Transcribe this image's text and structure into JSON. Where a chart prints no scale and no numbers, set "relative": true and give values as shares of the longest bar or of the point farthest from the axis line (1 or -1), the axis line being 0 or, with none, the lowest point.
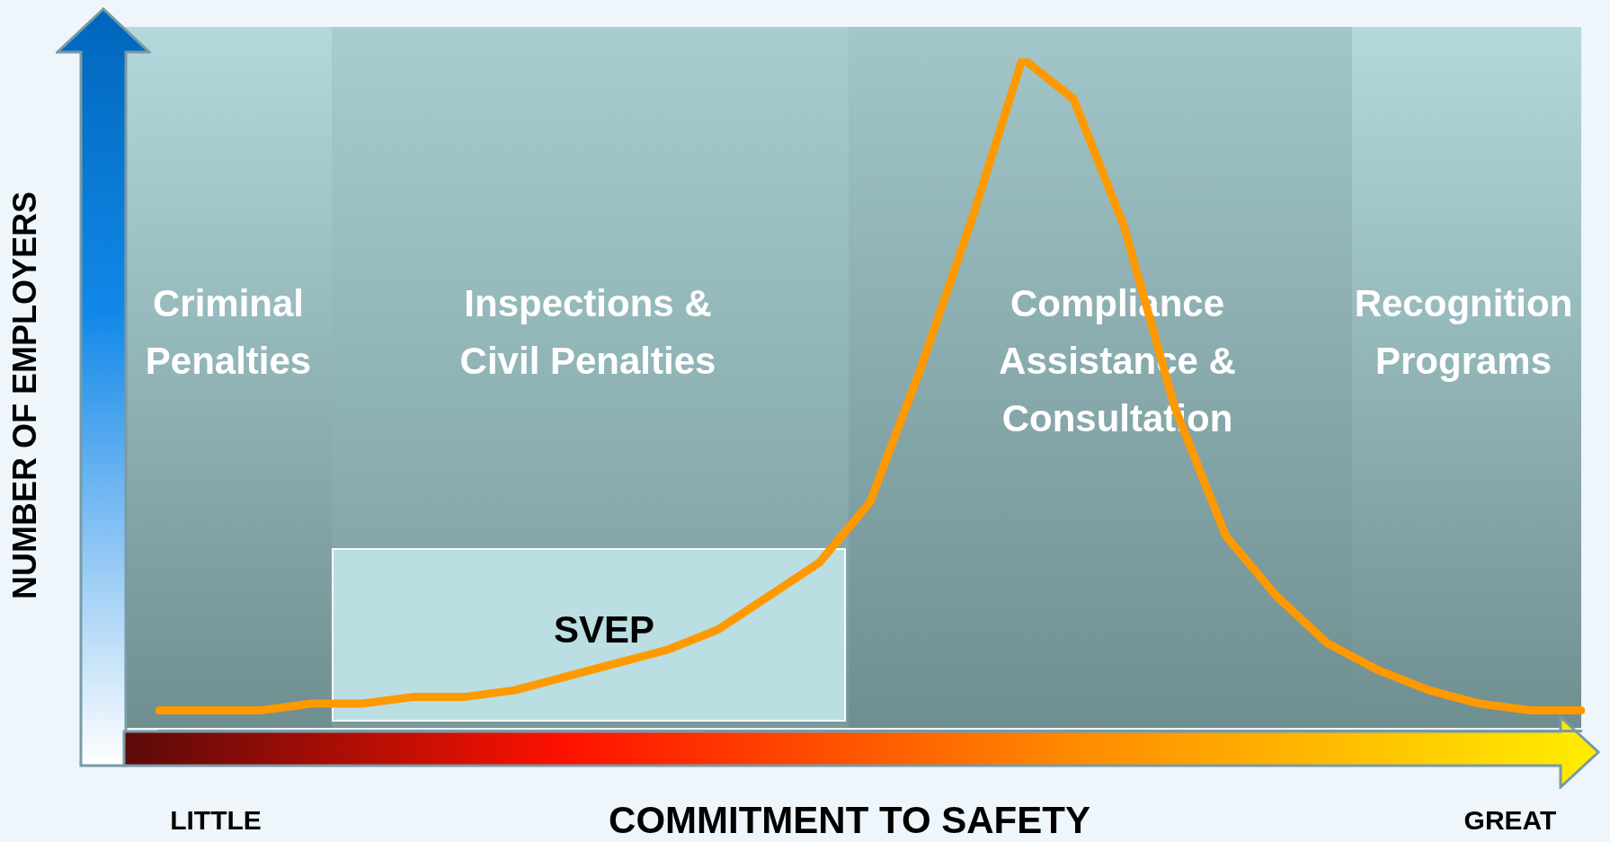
{
  "chart_data": {
    "type": "line",
    "relative": true,
    "xlabel": "COMMITMENT TO SAFETY",
    "ylabel": "NUMBER OF EMPLOYERS",
    "annotations": [
      "Criminal Penalties",
      "Inspections & Civil Penalties",
      "Compliance Assistance & Consultation",
      "Recognition Programs",
      "SVEP",
      "LITTLE",
      "GREAT"
    ],
    "marker": "none",
    "line_style": "solid",
    "categories": [
      null,
      null,
      null,
      null,
      null,
      null,
      null,
      null,
      null,
      null,
      null,
      null,
      null,
      null,
      null,
      null,
      null,
      null,
      null,
      null,
      null,
      null,
      null,
      null,
      null,
      null,
      null,
      null,
      null
    ],
    "series": [
      {
        "color": "#ff9900",
        "values": [
          0.03,
          0.03,
          0.03,
          0.04,
          0.04,
          0.05,
          0.05,
          0.06,
          0.08,
          0.1,
          0.12,
          0.15,
          0.2,
          0.25,
          0.34,
          0.54,
          0.76,
          1,
          0.94,
          0.75,
          0.48,
          0.29,
          0.2,
          0.13,
          0.09,
          0.06,
          0.04,
          0.03,
          0.03
        ]
      }
    ]
  }
}
